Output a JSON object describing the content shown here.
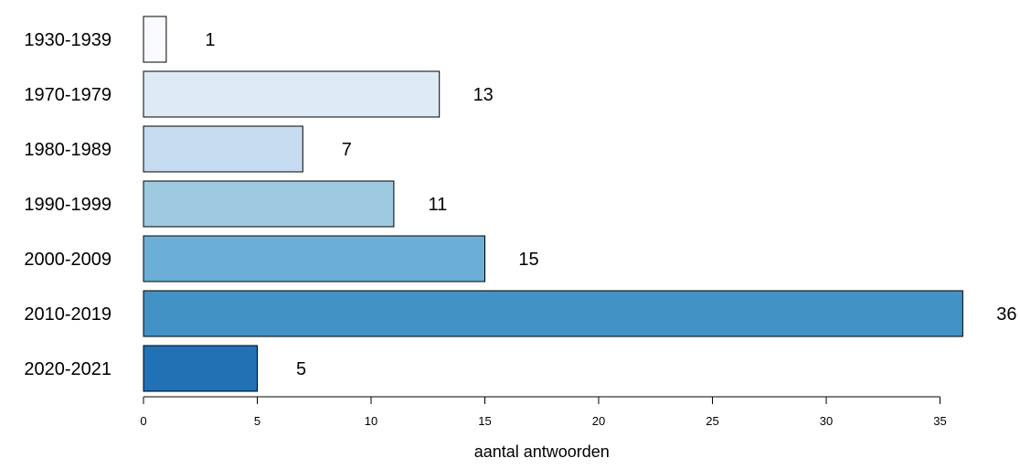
{
  "chart_data": {
    "type": "bar",
    "orientation": "horizontal",
    "categories": [
      "1930-1939",
      "1970-1979",
      "1980-1989",
      "1990-1999",
      "2000-2009",
      "2010-2019",
      "2020-2021"
    ],
    "values": [
      1,
      13,
      7,
      11,
      15,
      36,
      5
    ],
    "colors": [
      "#f7fbff",
      "#deebf7",
      "#c6dbef",
      "#9ecae1",
      "#6baed6",
      "#4292c6",
      "#2171b5"
    ],
    "xlabel": "aantal antwoorden",
    "ylabel": "",
    "xlim": [
      0,
      35
    ],
    "xticks": [
      0,
      5,
      10,
      15,
      20,
      25,
      30,
      35
    ],
    "grid": false,
    "legend": "none"
  }
}
